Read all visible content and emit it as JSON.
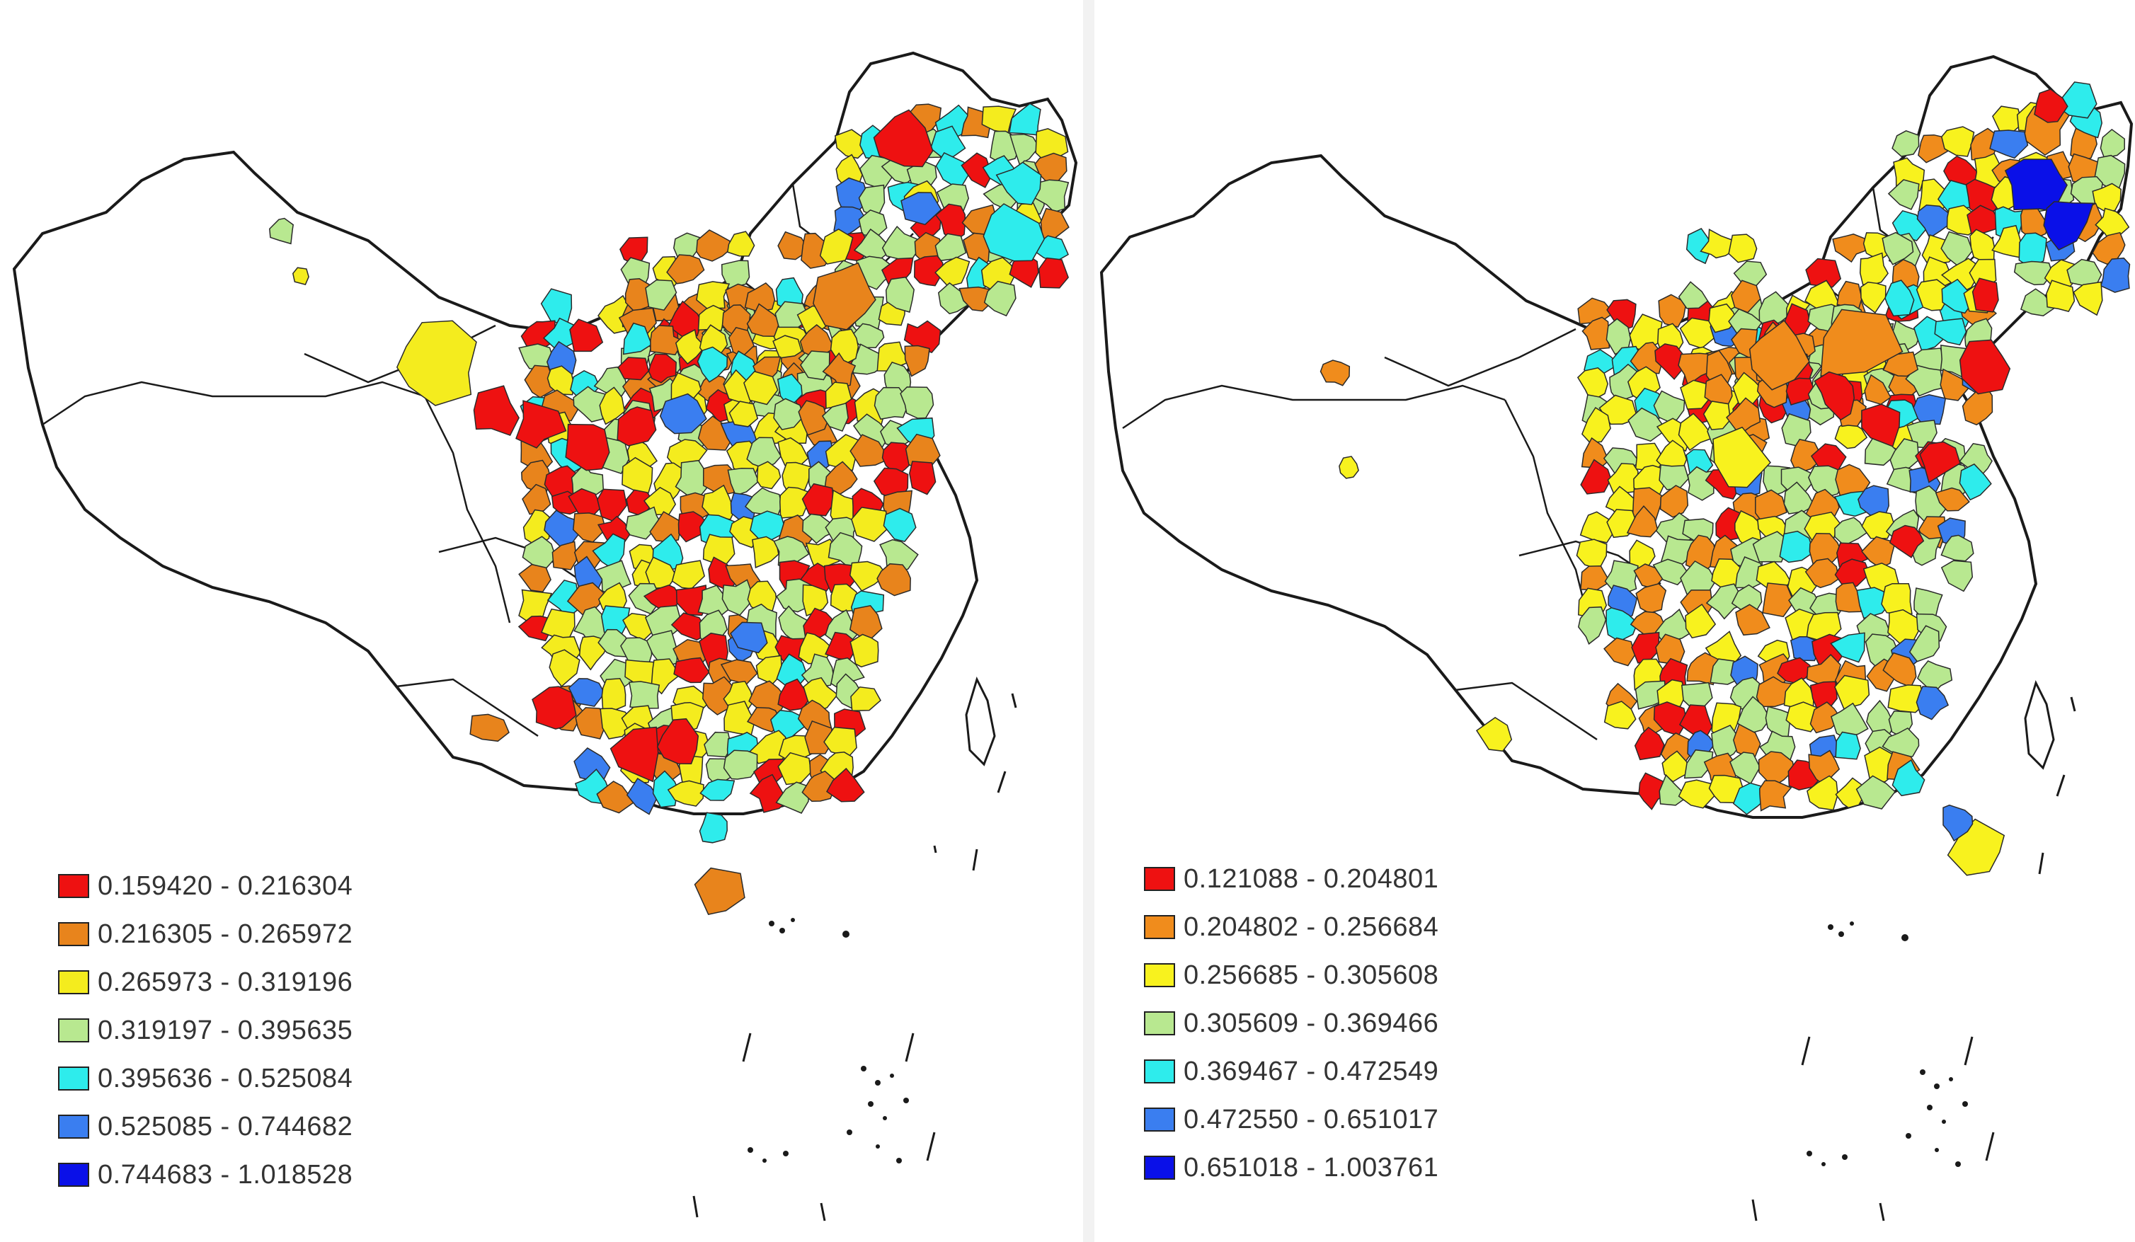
{
  "maps": [
    {
      "id": "left",
      "legend": [
        {
          "label": "0.159420 - 0.216304",
          "color": "#ee1111"
        },
        {
          "label": "0.216305 - 0.265972",
          "color": "#e8841c"
        },
        {
          "label": "0.265973 - 0.319196",
          "color": "#f4ec1e"
        },
        {
          "label": "0.319197 - 0.395635",
          "color": "#b8e890"
        },
        {
          "label": "0.395636 - 0.525084",
          "color": "#2eecec"
        },
        {
          "label": "0.525085 - 0.744682",
          "color": "#3a7ef0"
        },
        {
          "label": "0.744683 - 1.018528",
          "color": "#0a10e8"
        }
      ]
    },
    {
      "id": "right",
      "legend": [
        {
          "label": "0.121088 - 0.204801",
          "color": "#ee1111"
        },
        {
          "label": "0.204802 - 0.256684",
          "color": "#f08c1c"
        },
        {
          "label": "0.256685 - 0.305608",
          "color": "#f8f21e"
        },
        {
          "label": "0.305609 - 0.369466",
          "color": "#b8e890"
        },
        {
          "label": "0.369467 - 0.472549",
          "color": "#2eecec"
        },
        {
          "label": "0.472550 - 0.651017",
          "color": "#3a7ef0"
        },
        {
          "label": "0.651018 - 1.003761",
          "color": "#0a10e8"
        }
      ]
    }
  ],
  "colors": {
    "outline": "#1a1a1a",
    "land_unfilled": "#ffffff"
  }
}
